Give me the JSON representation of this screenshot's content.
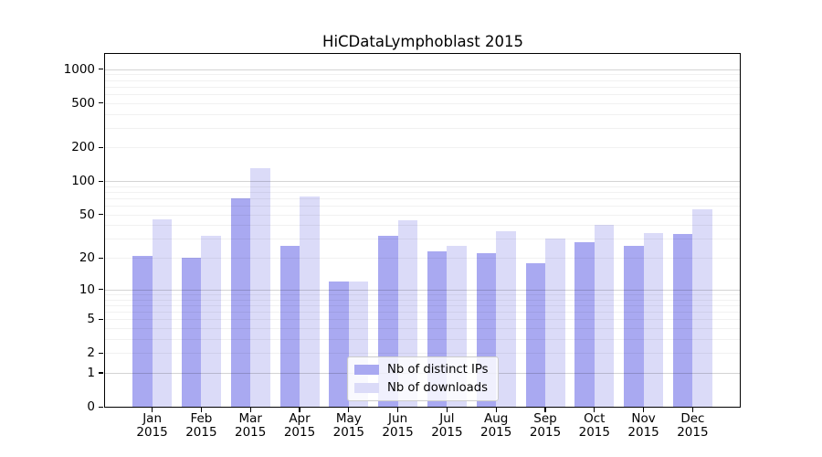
{
  "title": "HiCDataLymphoblast 2015",
  "chart_data": {
    "type": "bar",
    "title": "HiCDataLymphoblast 2015",
    "xlabel": "",
    "ylabel": "",
    "yscale": "log10(1+y)",
    "grid": true,
    "legend_position": "lower center",
    "categories": [
      "Jan",
      "Feb",
      "Mar",
      "Apr",
      "May",
      "Jun",
      "Jul",
      "Aug",
      "Sep",
      "Oct",
      "Nov",
      "Dec"
    ],
    "category_year": "2015",
    "series": [
      {
        "name": "Nb of distinct IPs",
        "color": "#a9a9f1",
        "values": [
          21,
          20,
          70,
          26,
          12,
          32,
          23,
          22,
          18,
          28,
          26,
          33
        ]
      },
      {
        "name": "Nb of downloads",
        "color": "#dbdbf8",
        "values": [
          45,
          32,
          130,
          73,
          12,
          44,
          26,
          35,
          30,
          40,
          34,
          56
        ]
      }
    ],
    "ytick_labels": [
      "1000",
      "500",
      "200",
      "100",
      "50",
      "20",
      "10",
      "5",
      "2",
      "1",
      "0"
    ],
    "ytick_values": [
      1000,
      500,
      200,
      100,
      50,
      20,
      10,
      5,
      2,
      1,
      0
    ],
    "major_gridline_values": [
      1,
      10,
      100,
      1000
    ],
    "minor_gridline_values": [
      2,
      3,
      4,
      5,
      6,
      7,
      8,
      9,
      20,
      30,
      40,
      50,
      60,
      70,
      80,
      90,
      200,
      300,
      400,
      500,
      600,
      700,
      800,
      900
    ],
    "ylim": [
      0,
      1380
    ]
  },
  "colors": {
    "background": "#ffffff",
    "series_ips": "#a9a9f1",
    "series_downloads": "#dbdbf8",
    "axis": "#000000",
    "major_grid": "rgba(0,0,0,0.17)",
    "minor_grid": "rgba(0,0,0,0.055)",
    "legend_border": "#cccccc"
  }
}
